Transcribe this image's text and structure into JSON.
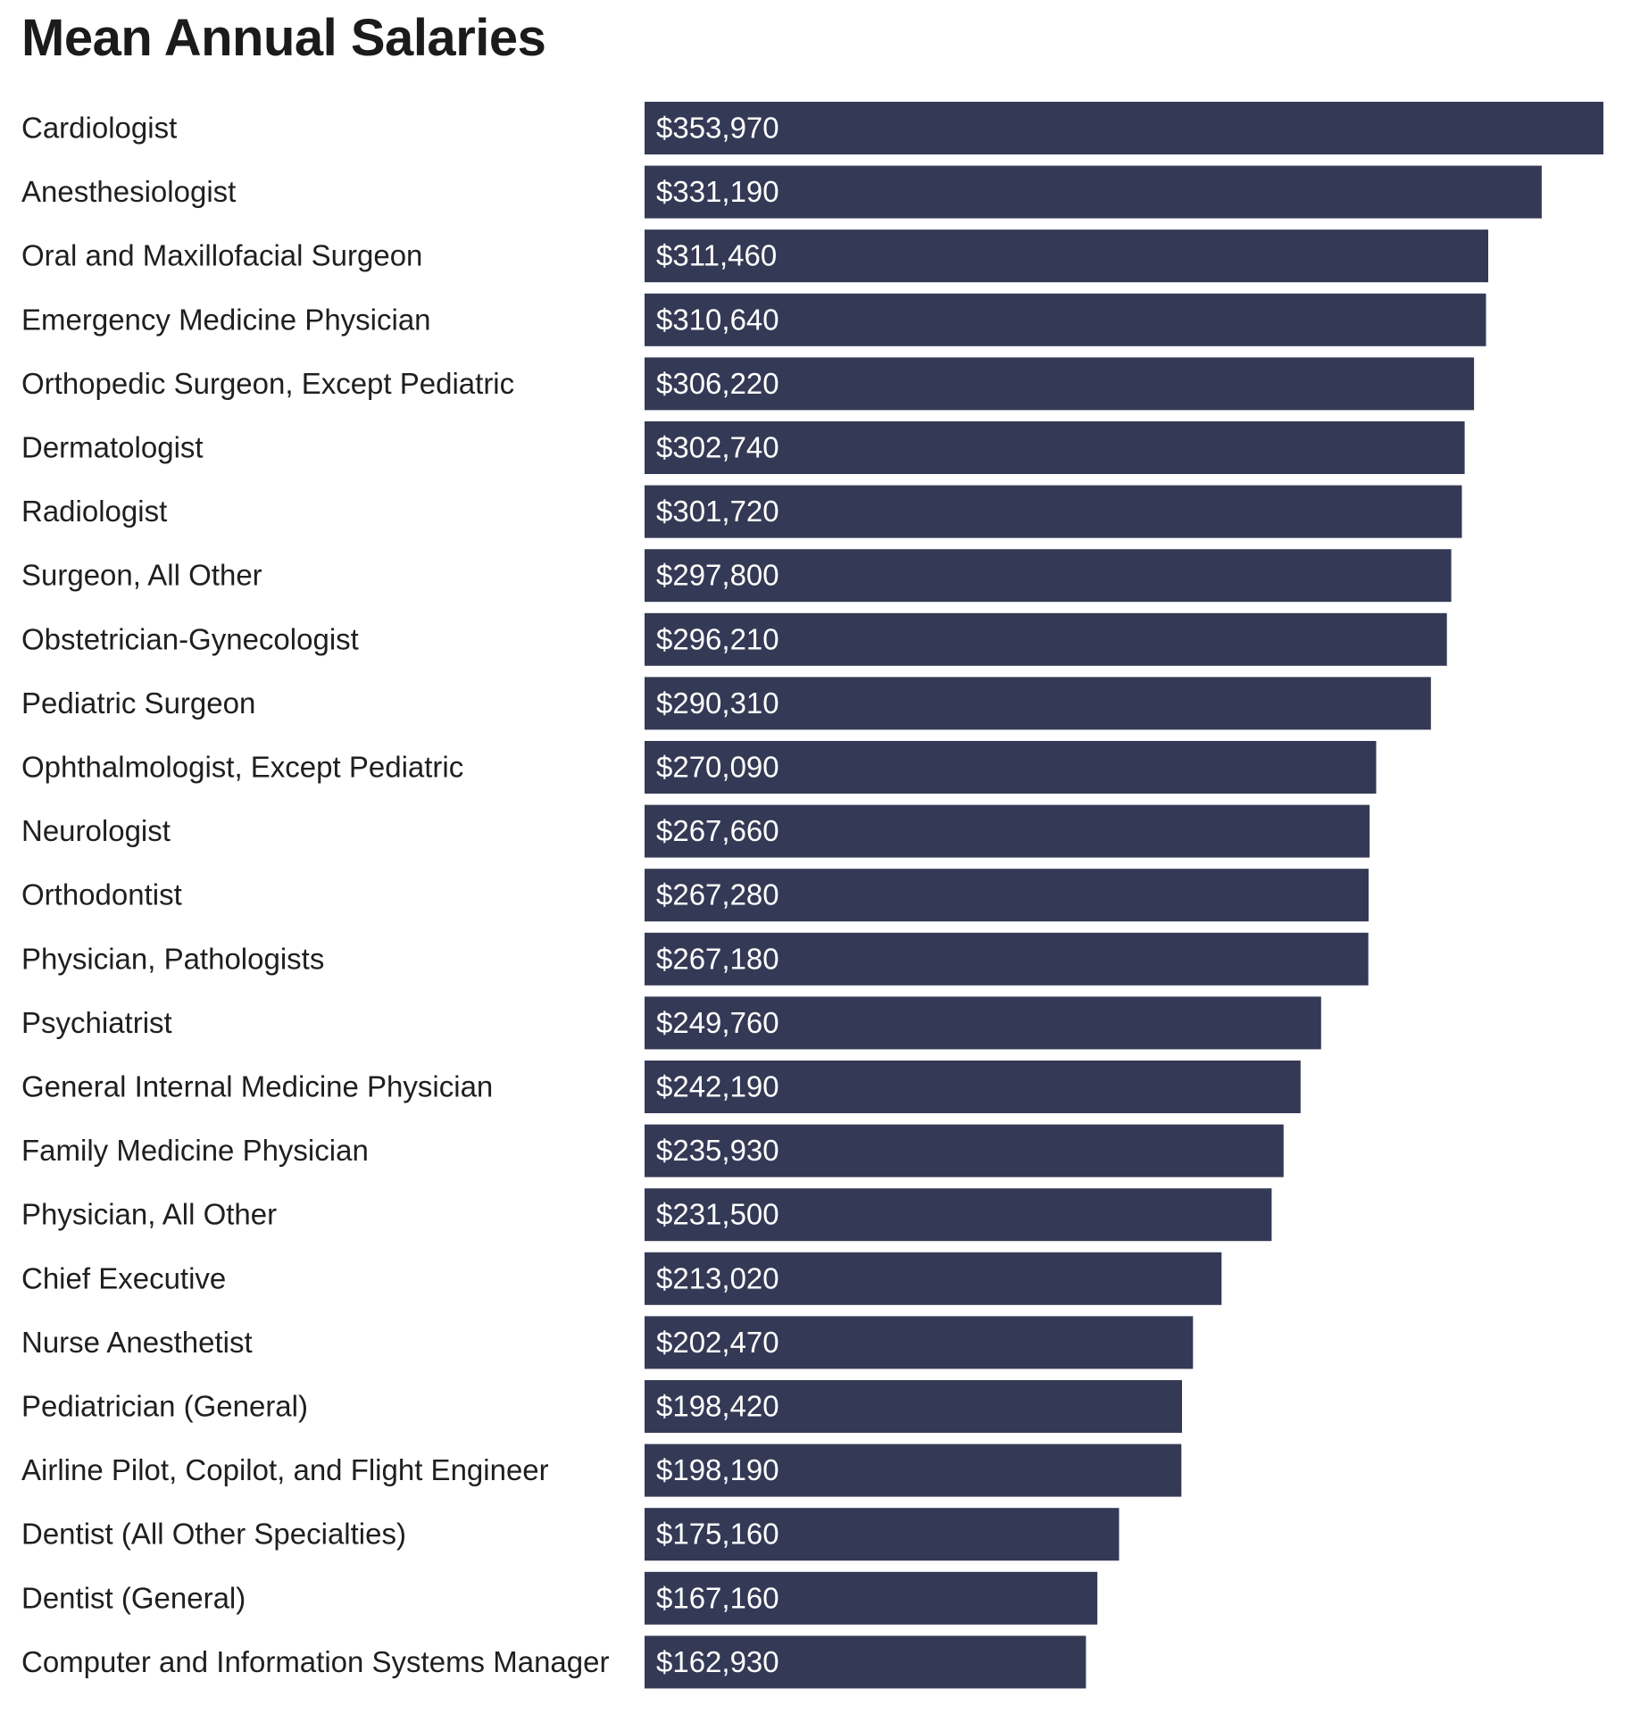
{
  "chart_data": {
    "type": "bar",
    "orientation": "horizontal",
    "title": "Mean Annual Salaries",
    "xlabel": "",
    "ylabel": "",
    "xlim": [
      0,
      353970
    ],
    "bar_color": "#343a55",
    "categories": [
      "Cardiologist",
      "Anesthesiologist",
      "Oral and Maxillofacial Surgeon",
      "Emergency Medicine Physician",
      "Orthopedic Surgeon, Except Pediatric",
      "Dermatologist",
      "Radiologist",
      "Surgeon, All Other",
      "Obstetrician-Gynecologist",
      "Pediatric Surgeon",
      "Ophthalmologist, Except Pediatric",
      "Neurologist",
      "Orthodontist",
      "Physician, Pathologists",
      "Psychiatrist",
      "General Internal Medicine Physician",
      "Family Medicine Physician",
      "Physician, All Other",
      "Chief Executive",
      "Nurse Anesthetist",
      "Pediatrician (General)",
      "Airline Pilot, Copilot, and Flight Engineer",
      "Dentist (All Other Specialties)",
      "Dentist (General)",
      "Computer and Information Systems Manager"
    ],
    "values": [
      353970,
      331190,
      311460,
      310640,
      306220,
      302740,
      301720,
      297800,
      296210,
      290310,
      270090,
      267660,
      267280,
      267180,
      249760,
      242190,
      235930,
      231500,
      213020,
      202470,
      198420,
      198190,
      175160,
      167160,
      162930
    ],
    "value_labels": [
      "$353,970",
      "$331,190",
      "$311,460",
      "$310,640",
      "$306,220",
      "$302,740",
      "$301,720",
      "$297,800",
      "$296,210",
      "$290,310",
      "$270,090",
      "$267,660",
      "$267,280",
      "$267,180",
      "$249,760",
      "$242,190",
      "$235,930",
      "$231,500",
      "$213,020",
      "$202,470",
      "$198,420",
      "$198,190",
      "$175,160",
      "$167,160",
      "$162,930"
    ]
  }
}
